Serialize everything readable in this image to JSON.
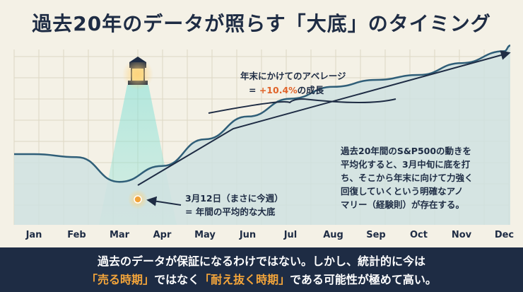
{
  "title": "過去20年のデータが照らす「大底」のタイミング",
  "chart_data": {
    "type": "area",
    "categories": [
      "Jan",
      "Feb",
      "Mar",
      "Apr",
      "May",
      "Jun",
      "Jul",
      "Aug",
      "Sep",
      "Oct",
      "Nov",
      "Dec"
    ],
    "series": [
      {
        "values": [
          0.0,
          -0.3,
          -2.8,
          -1.2,
          1.5,
          3.8,
          5.6,
          6.8,
          7.5,
          8.0,
          9.2,
          10.4
        ]
      }
    ],
    "low_point": {
      "label_line1": "3月12日（まさに今週）",
      "label_line2": "= 年間の平均的な大底"
    },
    "rise": {
      "label_line1": "年末にかけてのアベレージ",
      "prefix": "= ",
      "value": "+10.4%",
      "suffix": "の成長"
    },
    "note": [
      "過去20年間のS&P500の動きを",
      "平均化すると、3月中旬に底を打",
      "ち、そこから年末に向けて力強く",
      "回復していくという明確なアノ",
      "マリー（経験則）が存在する。"
    ],
    "colors": {
      "line": "#2f5e78",
      "area": "#cfe2e1",
      "beam": "#7fe0d6",
      "dot": "#f2a33a",
      "navy": "#1e2c44",
      "accent": "#e0642a"
    },
    "grid": true
  },
  "footer": {
    "line1": "過去のデータが保証になるわけではない。しかし、統計的に今は",
    "part1": "「売る時期」",
    "part2": "ではなく",
    "part3": "「耐え抜く時期」",
    "part4": "である可能性が極めて高い。"
  }
}
